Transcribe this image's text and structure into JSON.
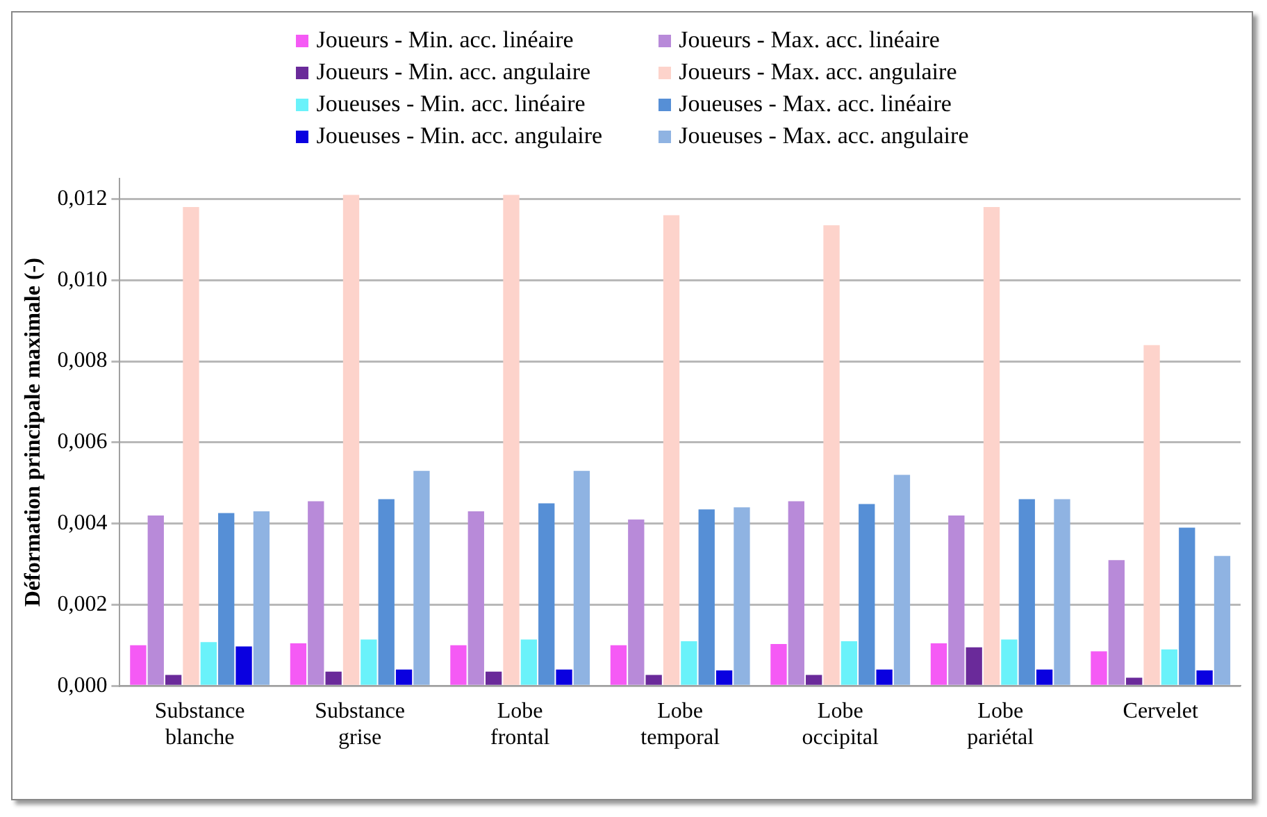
{
  "chart_data": {
    "type": "bar",
    "ylabel": "Déformation principale maximale (-)",
    "categories": [
      "Substance blanche",
      "Substance grise",
      "Lobe frontal",
      "Lobe temporal",
      "Lobe occipital",
      "Lobe pariétal",
      "Cervelet"
    ],
    "series": [
      {
        "name": "Joueurs - Min. acc. linéaire",
        "color": "#f55af5",
        "values": [
          0.001,
          0.00105,
          0.001,
          0.001,
          0.00103,
          0.00105,
          0.00085
        ]
      },
      {
        "name": "Joueurs - Max. acc. linéaire",
        "color": "#b88ad9",
        "values": [
          0.0042,
          0.00455,
          0.0043,
          0.0041,
          0.00455,
          0.0042,
          0.0031
        ]
      },
      {
        "name": "Joueurs - Min. acc. angulaire",
        "color": "#6a2a9a",
        "values": [
          0.00027,
          0.00035,
          0.00035,
          0.00027,
          0.00027,
          0.00095,
          0.0002
        ]
      },
      {
        "name": "Joueurs - Max. acc. angulaire",
        "color": "#fdd3cb",
        "values": [
          0.0118,
          0.0121,
          0.0121,
          0.0116,
          0.01135,
          0.0118,
          0.0084
        ]
      },
      {
        "name": "Joueuses - Min. acc. linéaire",
        "color": "#6af2fa",
        "values": [
          0.00108,
          0.00114,
          0.00114,
          0.0011,
          0.0011,
          0.00114,
          0.0009
        ]
      },
      {
        "name": "Joueuses - Max. acc. linéaire",
        "color": "#568fd6",
        "values": [
          0.00426,
          0.0046,
          0.0045,
          0.00435,
          0.00448,
          0.0046,
          0.0039
        ]
      },
      {
        "name": "Joueuses - Min. acc. angulaire",
        "color": "#0a00e0",
        "values": [
          0.00097,
          0.0004,
          0.0004,
          0.00038,
          0.0004,
          0.0004,
          0.00038
        ]
      },
      {
        "name": "Joueuses - Max. acc. angulaire",
        "color": "#8fb3e2",
        "values": [
          0.0043,
          0.0053,
          0.0053,
          0.0044,
          0.0052,
          0.0046,
          0.0032
        ]
      }
    ],
    "ylim": [
      0,
      0.0125
    ],
    "yticks": [
      {
        "value": 0,
        "label": "0,000"
      },
      {
        "value": 0.002,
        "label": "0,002"
      },
      {
        "value": 0.004,
        "label": "0,004"
      },
      {
        "value": 0.006,
        "label": "0,006"
      },
      {
        "value": 0.008,
        "label": "0,008"
      },
      {
        "value": 0.01,
        "label": "0,010"
      },
      {
        "value": 0.012,
        "label": "0,012"
      }
    ],
    "grid": "y",
    "legend": "top"
  }
}
